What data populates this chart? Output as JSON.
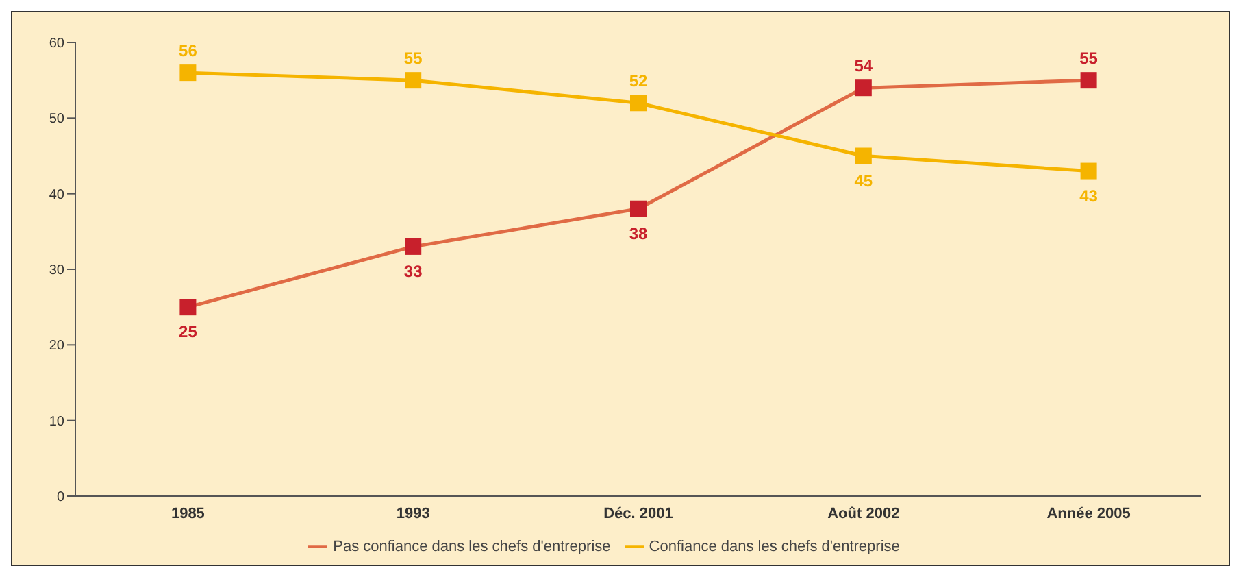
{
  "chart_data": {
    "type": "line",
    "categories": [
      "1985",
      "1993",
      "Déc. 2001",
      "Août 2002",
      "Année 2005"
    ],
    "series": [
      {
        "name": "Pas confiance dans les chefs d'entreprise",
        "color": "#c8202c",
        "values": [
          25,
          33,
          38,
          54,
          55
        ]
      },
      {
        "name": "Confiance dans les chefs d'entreprise",
        "color": "#f5b400",
        "values": [
          56,
          55,
          52,
          45,
          43
        ]
      }
    ],
    "ylim": [
      0,
      60
    ],
    "yticks": [
      0,
      10,
      20,
      30,
      40,
      50,
      60
    ],
    "grid": false,
    "legend": "bottom",
    "marker": "square",
    "line_style": "solid",
    "data_labels": true
  }
}
